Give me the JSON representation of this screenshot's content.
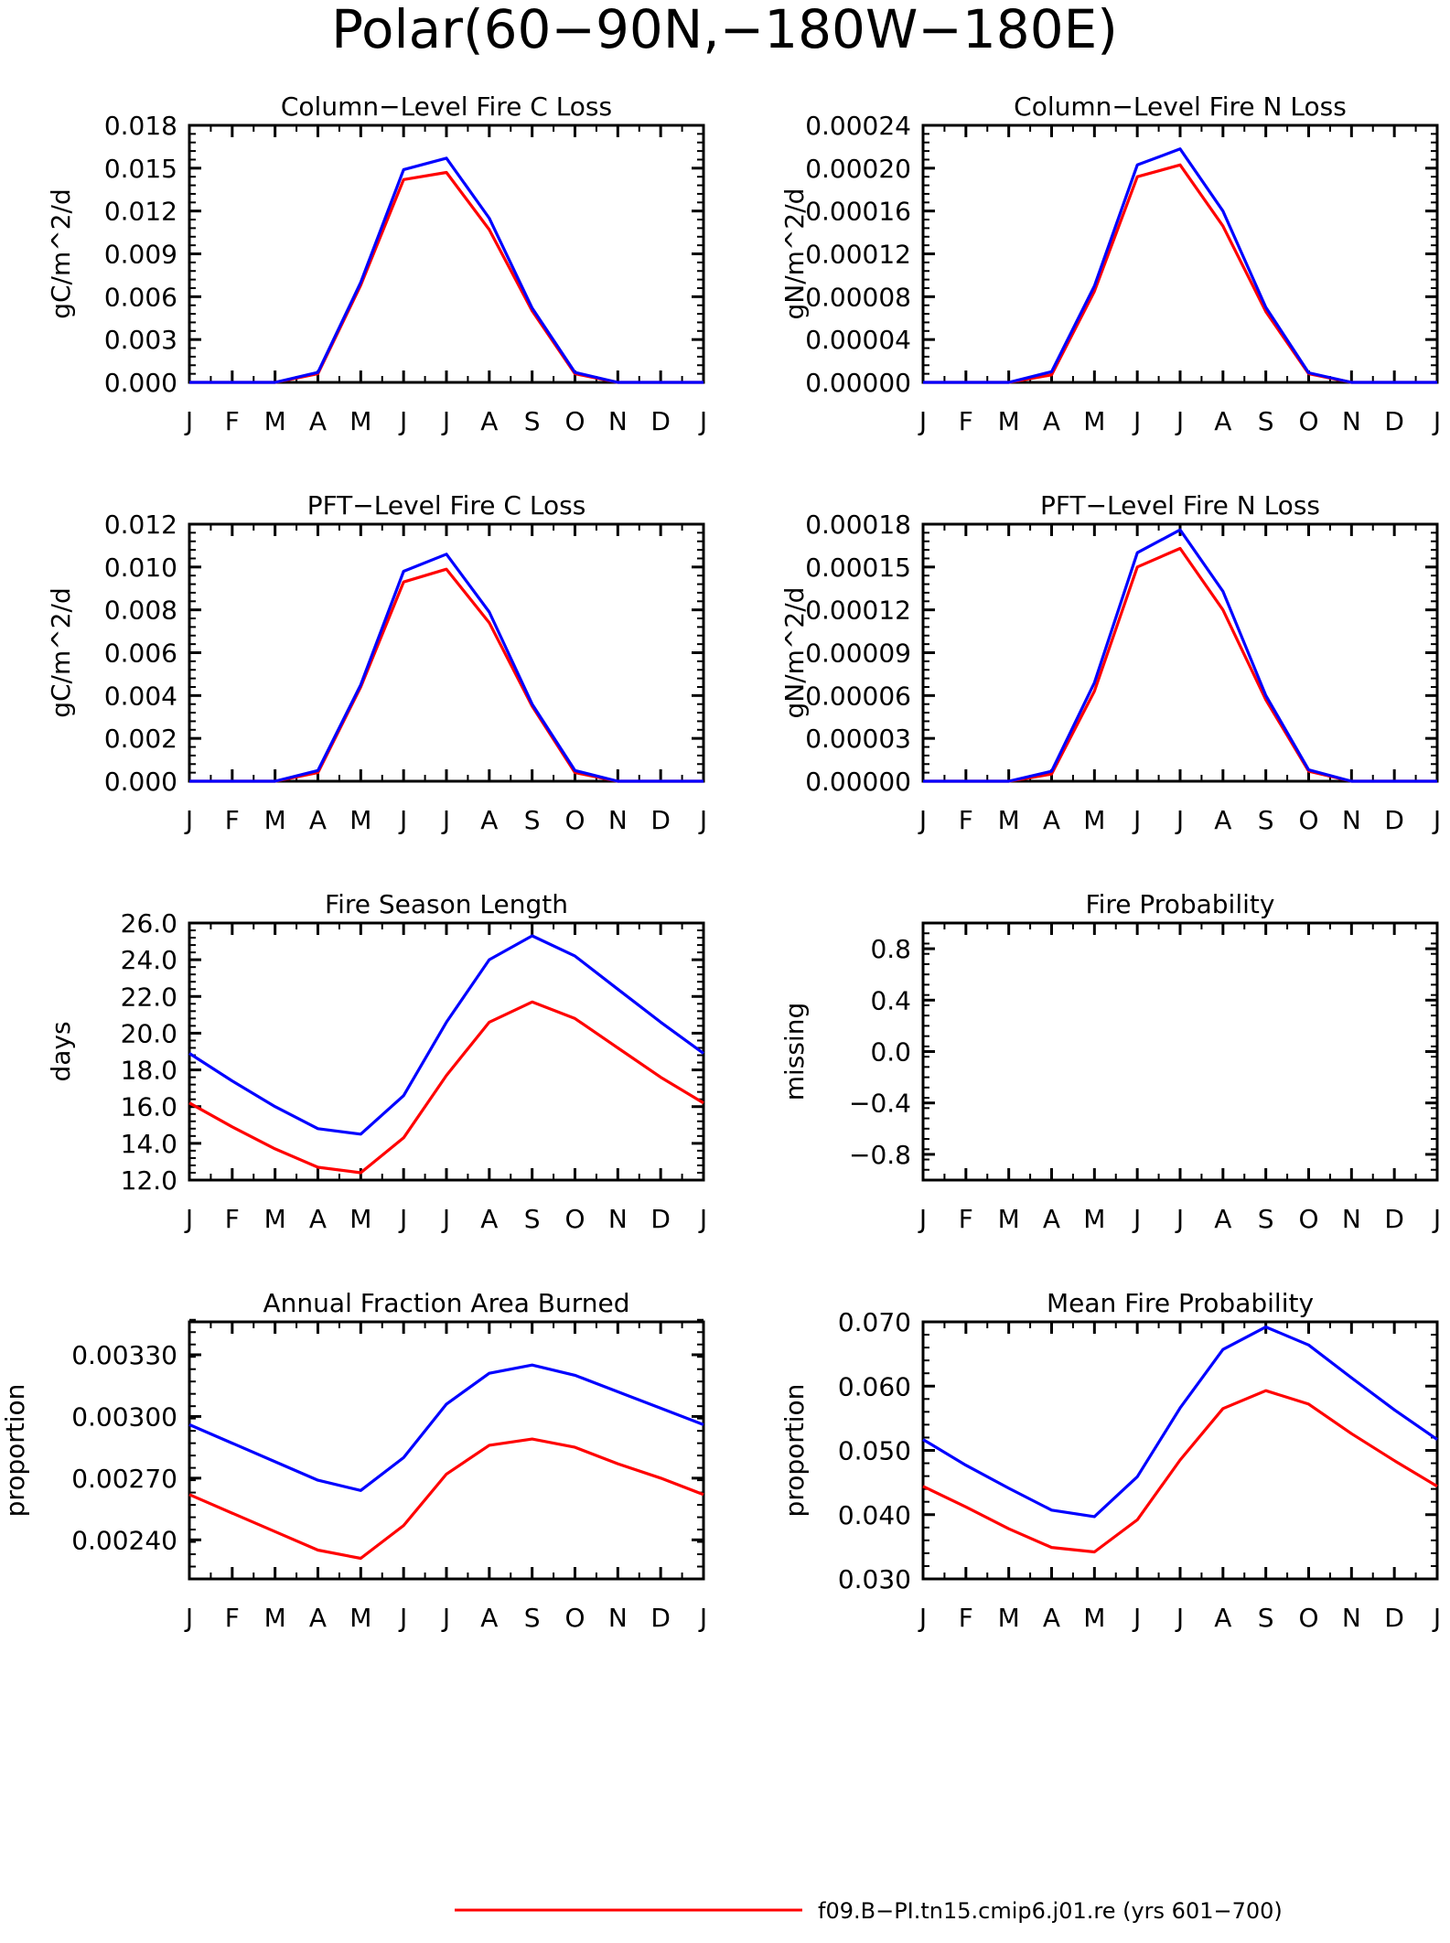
{
  "figure": {
    "title": "Polar(60−90N,−180W−180E)"
  },
  "colors": {
    "series_red": "#ff0000",
    "series_blue": "#0000ff",
    "axis": "#000000"
  },
  "legend": {
    "entries": [
      {
        "label": "f09.B−PI.tn15.cmip6.j01.re (yrs 601−700)",
        "color": "#ff0000"
      }
    ]
  },
  "chart_data": [
    {
      "id": "column-fire-c-loss",
      "type": "line",
      "title": "Column−Level Fire C Loss",
      "xlabel": "",
      "ylabel": "gC/m^2/d",
      "categories": [
        "J",
        "F",
        "M",
        "A",
        "M",
        "J",
        "J",
        "A",
        "S",
        "O",
        "N",
        "D",
        "J"
      ],
      "ylim": [
        0,
        0.018
      ],
      "yticks": [
        "0.000",
        "0.003",
        "0.006",
        "0.009",
        "0.012",
        "0.015",
        "0.018"
      ],
      "series": [
        {
          "color": "#ff0000",
          "values": [
            0,
            0,
            0,
            0.0006,
            0.0068,
            0.0142,
            0.0147,
            0.0107,
            0.005,
            0.0006,
            0,
            0,
            0
          ]
        },
        {
          "color": "#0000ff",
          "values": [
            0,
            0,
            0,
            0.0007,
            0.007,
            0.0149,
            0.0157,
            0.0115,
            0.0052,
            0.0007,
            0,
            0,
            0
          ]
        }
      ]
    },
    {
      "id": "column-fire-n-loss",
      "type": "line",
      "title": "Column−Level Fire N Loss",
      "xlabel": "",
      "ylabel": "gN/m^2/d",
      "categories": [
        "J",
        "F",
        "M",
        "A",
        "M",
        "J",
        "J",
        "A",
        "S",
        "O",
        "N",
        "D",
        "J"
      ],
      "ylim": [
        0,
        0.00024
      ],
      "yticks": [
        "0.00000",
        "0.00004",
        "0.00008",
        "0.00012",
        "0.00016",
        "0.00020",
        "0.00024"
      ],
      "series": [
        {
          "color": "#ff0000",
          "values": [
            0,
            0,
            0,
            7e-06,
            8.5e-05,
            0.000192,
            0.000203,
            0.000146,
            6.6e-05,
            8e-06,
            0,
            0,
            0
          ]
        },
        {
          "color": "#0000ff",
          "values": [
            0,
            0,
            0,
            1e-05,
            9e-05,
            0.000203,
            0.000218,
            0.00016,
            7e-05,
            9e-06,
            0,
            0,
            0
          ]
        }
      ]
    },
    {
      "id": "pft-fire-c-loss",
      "type": "line",
      "title": "PFT−Level Fire C Loss",
      "xlabel": "",
      "ylabel": "gC/m^2/d",
      "categories": [
        "J",
        "F",
        "M",
        "A",
        "M",
        "J",
        "J",
        "A",
        "S",
        "O",
        "N",
        "D",
        "J"
      ],
      "ylim": [
        0,
        0.012
      ],
      "yticks": [
        "0.000",
        "0.002",
        "0.004",
        "0.006",
        "0.008",
        "0.010",
        "0.012"
      ],
      "series": [
        {
          "color": "#ff0000",
          "values": [
            0,
            0,
            0,
            0.0004,
            0.0044,
            0.0093,
            0.0099,
            0.0074,
            0.0035,
            0.0004,
            0,
            0,
            0
          ]
        },
        {
          "color": "#0000ff",
          "values": [
            0,
            0,
            0,
            0.0005,
            0.0045,
            0.0098,
            0.0106,
            0.0079,
            0.0036,
            0.0005,
            0,
            0,
            0
          ]
        }
      ]
    },
    {
      "id": "pft-fire-n-loss",
      "type": "line",
      "title": "PFT−Level Fire N Loss",
      "xlabel": "",
      "ylabel": "gN/m^2/d",
      "categories": [
        "J",
        "F",
        "M",
        "A",
        "M",
        "J",
        "J",
        "A",
        "S",
        "O",
        "N",
        "D",
        "J"
      ],
      "ylim": [
        0,
        0.00018
      ],
      "yticks": [
        "0.00000",
        "0.00003",
        "0.00006",
        "0.00009",
        "0.00012",
        "0.00015",
        "0.00018"
      ],
      "series": [
        {
          "color": "#ff0000",
          "values": [
            0,
            0,
            0,
            5e-06,
            6.3e-05,
            0.00015,
            0.000163,
            0.00012,
            5.7e-05,
            7e-06,
            0,
            0,
            0
          ]
        },
        {
          "color": "#0000ff",
          "values": [
            0,
            0,
            0,
            7e-06,
            6.9e-05,
            0.00016,
            0.000176,
            0.000133,
            6e-05,
            8e-06,
            0,
            0,
            0
          ]
        }
      ]
    },
    {
      "id": "fire-season-length",
      "type": "line",
      "title": "Fire Season Length",
      "xlabel": "",
      "ylabel": "days",
      "categories": [
        "J",
        "F",
        "M",
        "A",
        "M",
        "J",
        "J",
        "A",
        "S",
        "O",
        "N",
        "D",
        "J"
      ],
      "ylim": [
        12,
        26
      ],
      "yticks": [
        "12.0",
        "14.0",
        "16.0",
        "18.0",
        "20.0",
        "22.0",
        "24.0",
        "26.0"
      ],
      "series": [
        {
          "color": "#ff0000",
          "values": [
            16.2,
            14.9,
            13.7,
            12.7,
            12.4,
            14.3,
            17.7,
            20.6,
            21.7,
            20.8,
            19.2,
            17.6,
            16.2
          ]
        },
        {
          "color": "#0000ff",
          "values": [
            18.9,
            17.4,
            16.0,
            14.8,
            14.5,
            16.6,
            20.6,
            24.0,
            25.3,
            24.2,
            22.4,
            20.6,
            18.9
          ]
        }
      ]
    },
    {
      "id": "fire-probability",
      "type": "line",
      "title": "Fire Probability",
      "xlabel": "",
      "ylabel": "missing",
      "categories": [
        "J",
        "F",
        "M",
        "A",
        "M",
        "J",
        "J",
        "A",
        "S",
        "O",
        "N",
        "D",
        "J"
      ],
      "ylim": [
        -1,
        1
      ],
      "yticks": [
        "−0.8",
        "−0.4",
        "0.0",
        "0.4",
        "0.8"
      ],
      "series": []
    },
    {
      "id": "annual-fraction-area-burned",
      "type": "line",
      "title": "Annual Fraction Area Burned",
      "xlabel": "",
      "ylabel": "proportion",
      "categories": [
        "J",
        "F",
        "M",
        "A",
        "M",
        "J",
        "J",
        "A",
        "S",
        "O",
        "N",
        "D",
        "J"
      ],
      "ylim": [
        0.00221,
        0.00346
      ],
      "yticks": [
        "0.00240",
        "0.00270",
        "0.00300",
        "0.00330"
      ],
      "series": [
        {
          "color": "#ff0000",
          "values": [
            0.00262,
            0.00253,
            0.00244,
            0.00235,
            0.00231,
            0.00247,
            0.00272,
            0.00286,
            0.00289,
            0.00285,
            0.00277,
            0.0027,
            0.00262
          ]
        },
        {
          "color": "#0000ff",
          "values": [
            0.00296,
            0.00287,
            0.00278,
            0.00269,
            0.00264,
            0.0028,
            0.00306,
            0.00321,
            0.00325,
            0.0032,
            0.00312,
            0.00304,
            0.00296
          ]
        }
      ]
    },
    {
      "id": "mean-fire-probability",
      "type": "line",
      "title": "Mean Fire Probability",
      "xlabel": "",
      "ylabel": "proportion",
      "categories": [
        "J",
        "F",
        "M",
        "A",
        "M",
        "J",
        "J",
        "A",
        "S",
        "O",
        "N",
        "D",
        "J"
      ],
      "ylim": [
        0.03,
        0.07
      ],
      "yticks": [
        "0.030",
        "0.040",
        "0.050",
        "0.060",
        "0.070"
      ],
      "series": [
        {
          "color": "#ff0000",
          "values": [
            0.0444,
            0.0412,
            0.0378,
            0.0349,
            0.0342,
            0.0392,
            0.0485,
            0.0565,
            0.0593,
            0.0572,
            0.0526,
            0.0484,
            0.0444
          ]
        },
        {
          "color": "#0000ff",
          "values": [
            0.0517,
            0.0477,
            0.0441,
            0.0407,
            0.0397,
            0.0459,
            0.0566,
            0.0657,
            0.0692,
            0.0664,
            0.0613,
            0.0563,
            0.0517
          ]
        }
      ]
    }
  ]
}
